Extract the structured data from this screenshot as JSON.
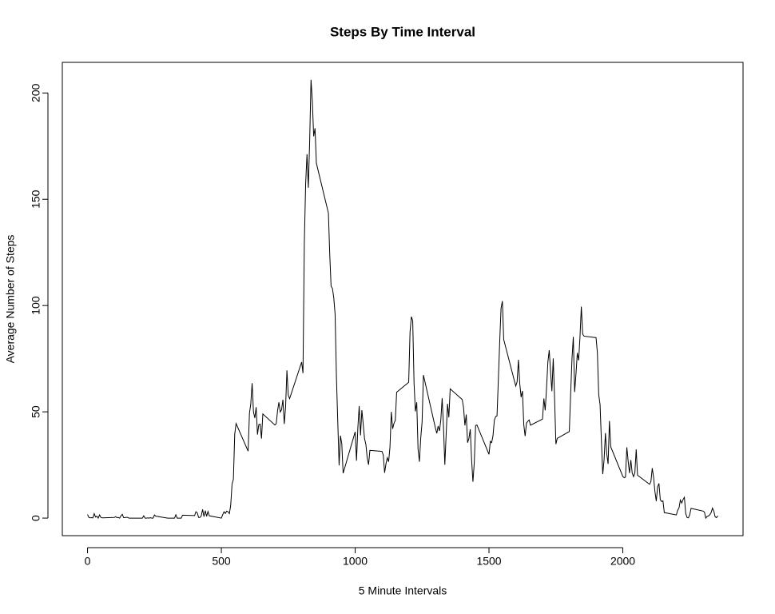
{
  "chart_data": {
    "type": "line",
    "title": "Steps By Time Interval",
    "x_label": "5 Minute Intervals",
    "y_label": "Average Number of Steps",
    "xlim": [
      -94.2,
      2449.2
    ],
    "ylim": [
      -8.25,
      214.4
    ],
    "xticks": [
      0,
      500,
      1000,
      1500,
      2000
    ],
    "yticks": [
      0,
      50,
      100,
      150,
      200
    ],
    "x": [
      0,
      5,
      10,
      15,
      20,
      25,
      30,
      35,
      40,
      45,
      50,
      55,
      100,
      105,
      110,
      115,
      120,
      125,
      130,
      135,
      140,
      145,
      150,
      155,
      200,
      205,
      210,
      215,
      220,
      225,
      230,
      235,
      240,
      245,
      250,
      255,
      300,
      305,
      310,
      315,
      320,
      325,
      330,
      335,
      340,
      345,
      350,
      355,
      400,
      405,
      410,
      415,
      420,
      425,
      430,
      435,
      440,
      445,
      450,
      455,
      500,
      505,
      510,
      515,
      520,
      525,
      530,
      535,
      540,
      545,
      550,
      555,
      600,
      605,
      610,
      615,
      620,
      625,
      630,
      635,
      640,
      645,
      650,
      655,
      700,
      705,
      710,
      715,
      720,
      725,
      730,
      735,
      740,
      745,
      750,
      755,
      800,
      805,
      810,
      815,
      820,
      825,
      830,
      835,
      840,
      845,
      850,
      855,
      900,
      905,
      910,
      915,
      920,
      925,
      930,
      935,
      940,
      945,
      950,
      955,
      1000,
      1005,
      1010,
      1015,
      1020,
      1025,
      1030,
      1035,
      1040,
      1045,
      1050,
      1055,
      1100,
      1105,
      1110,
      1115,
      1120,
      1125,
      1130,
      1135,
      1140,
      1145,
      1150,
      1155,
      1200,
      1205,
      1210,
      1215,
      1220,
      1225,
      1230,
      1235,
      1240,
      1245,
      1250,
      1255,
      1300,
      1305,
      1310,
      1315,
      1320,
      1325,
      1330,
      1335,
      1340,
      1345,
      1350,
      1355,
      1400,
      1405,
      1410,
      1415,
      1420,
      1425,
      1430,
      1435,
      1440,
      1445,
      1450,
      1455,
      1500,
      1505,
      1510,
      1515,
      1520,
      1525,
      1530,
      1535,
      1540,
      1545,
      1550,
      1555,
      1600,
      1605,
      1610,
      1615,
      1620,
      1625,
      1630,
      1635,
      1640,
      1645,
      1650,
      1655,
      1700,
      1705,
      1710,
      1715,
      1720,
      1725,
      1730,
      1735,
      1740,
      1745,
      1750,
      1755,
      1800,
      1805,
      1810,
      1815,
      1820,
      1825,
      1830,
      1835,
      1840,
      1845,
      1850,
      1855,
      1900,
      1905,
      1910,
      1915,
      1920,
      1925,
      1930,
      1935,
      1940,
      1945,
      1950,
      1955,
      2000,
      2005,
      2010,
      2015,
      2020,
      2025,
      2030,
      2035,
      2040,
      2045,
      2050,
      2055,
      2100,
      2105,
      2110,
      2115,
      2120,
      2125,
      2130,
      2135,
      2140,
      2145,
      2150,
      2155,
      2200,
      2205,
      2210,
      2215,
      2220,
      2225,
      2230,
      2235,
      2240,
      2245,
      2250,
      2255,
      2300,
      2305,
      2310,
      2315,
      2320,
      2325,
      2330,
      2335,
      2340,
      2345,
      2350,
      2355
    ],
    "series": [
      {
        "color": "#000000",
        "values": [
          1.7,
          0.3,
          0.1,
          0.2,
          0.1,
          2.1,
          0.5,
          0.9,
          0,
          1.5,
          0.3,
          0.1,
          0.3,
          0.7,
          0.2,
          0.3,
          0,
          1.1,
          1.8,
          0.2,
          0.2,
          0.4,
          0.3,
          0,
          0,
          0,
          1.1,
          0,
          0,
          0.1,
          0,
          0.2,
          0,
          0,
          1.5,
          0.9,
          0,
          0,
          0,
          0,
          0,
          0,
          1.6,
          0,
          0,
          0,
          0,
          1.4,
          1.2,
          3,
          2.5,
          0.3,
          0.3,
          1.1,
          4.1,
          0.7,
          3.5,
          0.8,
          3.1,
          1.1,
          0,
          1.6,
          3,
          2.2,
          3.3,
          3,
          2.1,
          6.1,
          16,
          18.3,
          39.5,
          44.5,
          31.5,
          49.3,
          53.8,
          63.5,
          50,
          47.1,
          52.2,
          39.3,
          44,
          44.2,
          37.4,
          49,
          43.8,
          44.4,
          50.5,
          54.5,
          49.9,
          51,
          55.7,
          44.3,
          52.3,
          69.5,
          57.8,
          56.2,
          73.4,
          68.2,
          129.4,
          157.5,
          171.2,
          155.4,
          177.3,
          206.2,
          195.9,
          179.6,
          183.4,
          167,
          143.5,
          124,
          109.1,
          108.1,
          103.7,
          96,
          66.2,
          45.2,
          24.8,
          38.8,
          35,
          21.1,
          40.6,
          27,
          42.4,
          52.7,
          38.9,
          50.8,
          44.3,
          37.4,
          34.7,
          28.3,
          25.1,
          31.9,
          31.4,
          29.7,
          21.3,
          25.5,
          28.4,
          26.5,
          33.4,
          50,
          42,
          44.6,
          46,
          59.2,
          63.9,
          87.6,
          94.8,
          92.8,
          63.4,
          50.2,
          54.5,
          32.4,
          26.5,
          37.7,
          45.1,
          67.3,
          42.3,
          39.9,
          43.3,
          41,
          46.2,
          56.4,
          42.8,
          25.1,
          39.5,
          53.8,
          47.4,
          60.8,
          55.8,
          51.9,
          43.6,
          48.7,
          35.5,
          37.5,
          41.8,
          27.5,
          17.1,
          26.1,
          43.6,
          43.8,
          30,
          36.1,
          35.5,
          38.8,
          46,
          47.8,
          48.1,
          65.3,
          82.9,
          98.7,
          102.1,
          84,
          62.1,
          64.1,
          74.5,
          63.2,
          56.9,
          59.8,
          43.9,
          38.6,
          44.7,
          45.5,
          46.2,
          43.7,
          46.6,
          56.3,
          50.7,
          61.2,
          73.4,
          79,
          68.9,
          59.7,
          75.1,
          56.5,
          34.8,
          37.5,
          40.7,
          58,
          74.7,
          85.3,
          59.3,
          67.8,
          77.7,
          74.2,
          85.3,
          99.5,
          86.6,
          85.6,
          84.9,
          77.8,
          58,
          53.4,
          36.3,
          20.7,
          27.4,
          40,
          30.2,
          25.5,
          45.7,
          33.5,
          19.6,
          19,
          19.3,
          33.3,
          26.8,
          21.2,
          27.3,
          21.3,
          19.5,
          21.3,
          32.3,
          20.2,
          15.9,
          17.2,
          23.5,
          19.2,
          12.5,
          8,
          14.7,
          16.3,
          8.7,
          7.8,
          8.1,
          2.6,
          1.5,
          3.7,
          4.8,
          8.5,
          7.1,
          8.7,
          9.8,
          2.2,
          0.3,
          0.1,
          1.6,
          4.6,
          3.3,
          2.8,
          0,
          0.8,
          1,
          1.6,
          2.6,
          4.7,
          3.3,
          0.6,
          0.2,
          1.1
        ]
      }
    ]
  }
}
